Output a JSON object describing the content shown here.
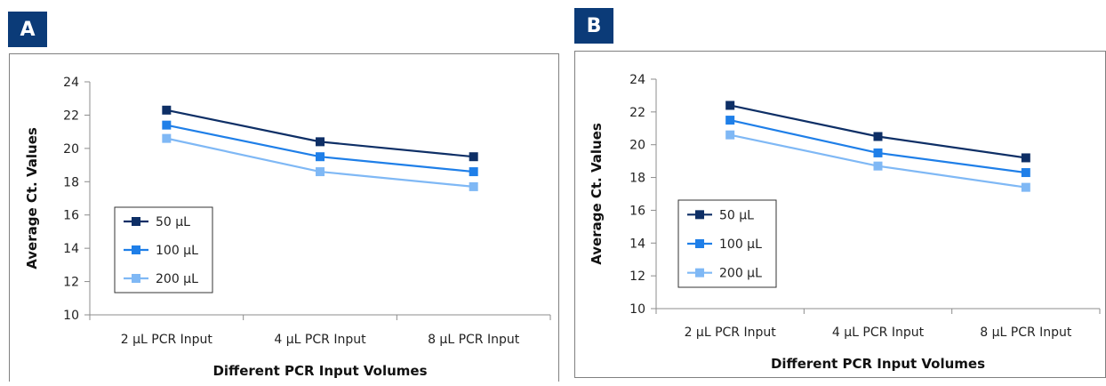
{
  "panels": [
    {
      "label": "A"
    },
    {
      "label": "B"
    }
  ],
  "colors": {
    "badge": "#0b3b78",
    "series": [
      "#0e2f66",
      "#1f7fe8",
      "#7fb8f5"
    ]
  },
  "chart_data": [
    {
      "type": "line",
      "categories": [
        "2 µL PCR Input",
        "4 µL PCR Input",
        "8 µL PCR Input"
      ],
      "xlabel": "Different PCR Input Volumes",
      "ylabel": "Average Ct. Values",
      "ylim": [
        10,
        24
      ],
      "yticks": [
        "10",
        "12",
        "14",
        "16",
        "18",
        "20",
        "22",
        "24"
      ],
      "grid": false,
      "legend": "bottom-left",
      "series": [
        {
          "name": "50 µL",
          "values": [
            22.3,
            20.4,
            19.5
          ]
        },
        {
          "name": "100 µL",
          "values": [
            21.4,
            19.5,
            18.6
          ]
        },
        {
          "name": "200 µL",
          "values": [
            20.6,
            18.6,
            17.7
          ]
        }
      ]
    },
    {
      "type": "line",
      "categories": [
        "2 µL PCR Input",
        "4 µL PCR Input",
        "8 µL PCR Input"
      ],
      "xlabel": "Different PCR Input Volumes",
      "ylabel": "Average Ct. Values",
      "ylim": [
        10,
        24
      ],
      "yticks": [
        "10",
        "12",
        "14",
        "16",
        "18",
        "20",
        "22",
        "24"
      ],
      "grid": false,
      "legend": "bottom-left",
      "series": [
        {
          "name": "50 µL",
          "values": [
            22.4,
            20.5,
            19.2
          ]
        },
        {
          "name": "100 µL",
          "values": [
            21.5,
            19.5,
            18.3
          ]
        },
        {
          "name": "200 µL",
          "values": [
            20.6,
            18.7,
            17.4
          ]
        }
      ]
    }
  ]
}
